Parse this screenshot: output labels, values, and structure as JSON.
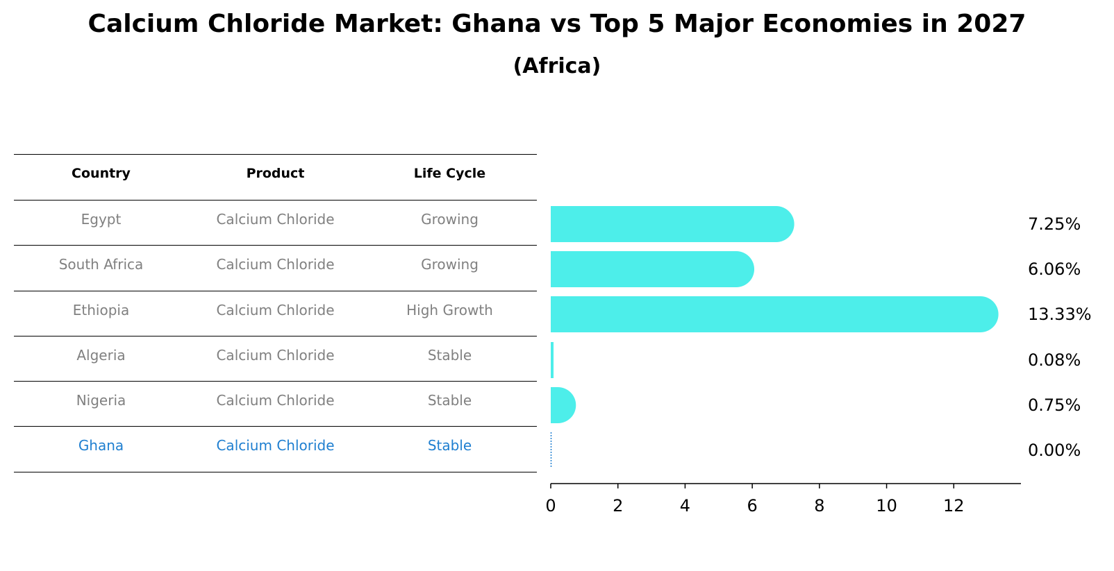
{
  "title": "Calcium Chloride Market: Ghana vs Top 5 Major Economies in 2027",
  "subtitle": "(Africa)",
  "table": {
    "headers": [
      "Country",
      "Product",
      "Life Cycle"
    ],
    "rows": [
      {
        "country": "Egypt",
        "product": "Calcium Chloride",
        "life_cycle": "Growing",
        "highlight": false
      },
      {
        "country": "South Africa",
        "product": "Calcium Chloride",
        "life_cycle": "Growing",
        "highlight": false
      },
      {
        "country": "Ethiopia",
        "product": "Calcium Chloride",
        "life_cycle": "High Growth",
        "highlight": false
      },
      {
        "country": "Algeria",
        "product": "Calcium Chloride",
        "life_cycle": "Stable",
        "highlight": false
      },
      {
        "country": "Nigeria",
        "product": "Calcium Chloride",
        "life_cycle": "Stable",
        "highlight": false
      },
      {
        "country": "Ghana",
        "product": "Calcium Chloride",
        "life_cycle": "Stable",
        "highlight": true
      }
    ]
  },
  "chart_data": {
    "type": "bar",
    "orientation": "horizontal",
    "categories": [
      "Egypt",
      "South Africa",
      "Ethiopia",
      "Algeria",
      "Nigeria",
      "Ghana"
    ],
    "values": [
      7.25,
      6.06,
      13.33,
      0.08,
      0.75,
      0.0
    ],
    "value_labels": [
      "7.25%",
      "6.06%",
      "13.33%",
      "0.08%",
      "0.75%",
      "0.00%"
    ],
    "xlim": [
      0,
      14
    ],
    "xticks": [
      0,
      2,
      4,
      6,
      8,
      10,
      12
    ],
    "xlabel": "",
    "ylabel": "",
    "grid": false,
    "bar_color": "#4deeea",
    "highlight_color": "#1f7fd0"
  }
}
